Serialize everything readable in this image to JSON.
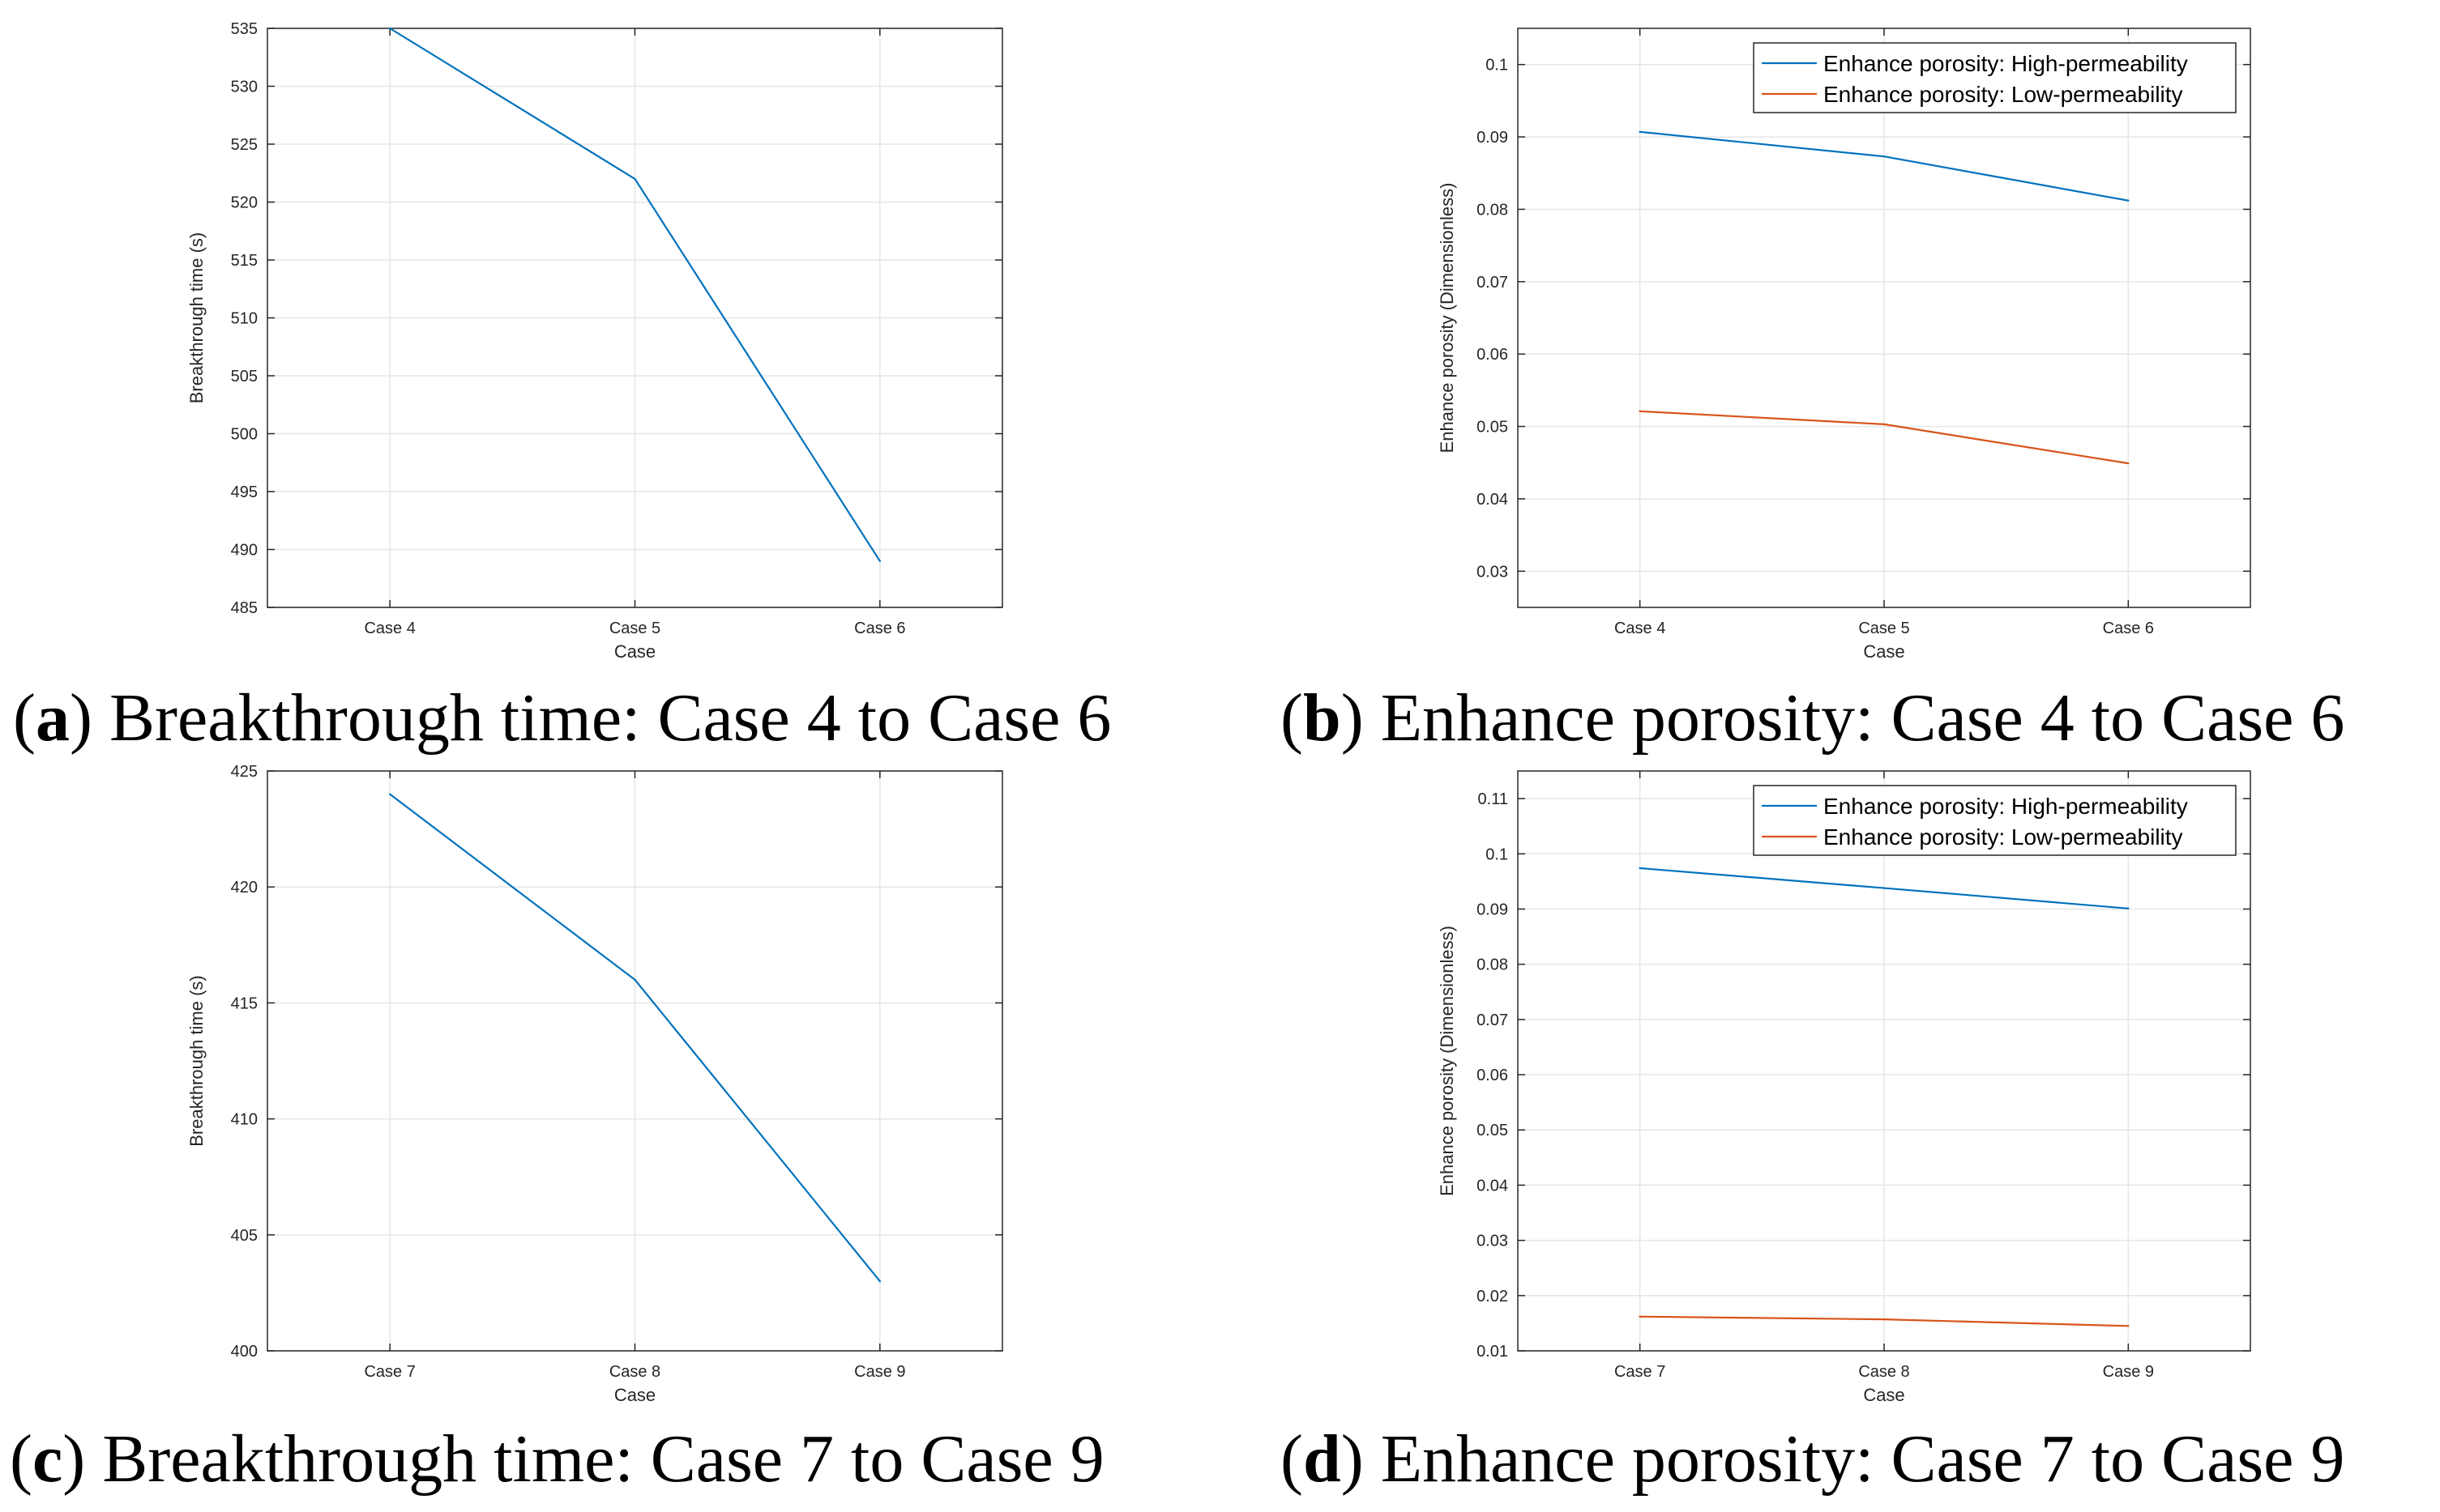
{
  "chart_data": [
    {
      "type": "line",
      "panel": "a",
      "caption_label": "a",
      "caption": "Breakthrough time: Case 4 to Case 6",
      "categories": [
        "Case 4",
        "Case 5",
        "Case 6"
      ],
      "xlabel": "Case",
      "ylabel": "Breakthrough time (s)",
      "ylim": [
        485,
        535
      ],
      "yticks": [
        "485",
        "490",
        "495",
        "500",
        "505",
        "510",
        "515",
        "520",
        "525",
        "530",
        "535"
      ],
      "grid": true,
      "legend": null,
      "series": [
        {
          "values": [
            535,
            522,
            489
          ],
          "color": "#0072BD"
        }
      ]
    },
    {
      "type": "line",
      "panel": "b",
      "caption_label": "b",
      "caption": "Enhance porosity: Case 4 to Case 6",
      "categories": [
        "Case 4",
        "Case 5",
        "Case 6"
      ],
      "xlabel": "Case",
      "ylabel": "Enhance porosity (Dimensionless)",
      "ylim": [
        0.025,
        0.105
      ],
      "yticks": [
        "0.03",
        "0.04",
        "0.05",
        "0.06",
        "0.07",
        "0.08",
        "0.09",
        "0.1"
      ],
      "grid": true,
      "legend": "top-right",
      "series": [
        {
          "name": "Enhance porosity: High-permeability",
          "values": [
            0.0907,
            0.0873,
            0.0812
          ],
          "color": "#0072BD"
        },
        {
          "name": "Enhance porosity: Low-permeability",
          "values": [
            0.0521,
            0.0503,
            0.0449
          ],
          "color": "#D95319"
        }
      ]
    },
    {
      "type": "line",
      "panel": "c",
      "caption_label": "c",
      "caption": "Breakthrough time: Case 7 to Case 9",
      "categories": [
        "Case 7",
        "Case 8",
        "Case 9"
      ],
      "xlabel": "Case",
      "ylabel": "Breakthrough time (s)",
      "ylim": [
        400,
        425
      ],
      "yticks": [
        "400",
        "405",
        "410",
        "415",
        "420",
        "425"
      ],
      "grid": true,
      "legend": null,
      "series": [
        {
          "values": [
            424,
            416,
            403
          ],
          "color": "#0072BD"
        }
      ]
    },
    {
      "type": "line",
      "panel": "d",
      "caption_label": "d",
      "caption": "Enhance porosity: Case 7 to Case 9",
      "categories": [
        "Case 7",
        "Case 8",
        "Case 9"
      ],
      "xlabel": "Case",
      "ylabel": "Enhance porosity (Dimensionless)",
      "ylim": [
        0.01,
        0.115
      ],
      "yticks": [
        "0.01",
        "0.02",
        "0.03",
        "0.04",
        "0.05",
        "0.06",
        "0.07",
        "0.08",
        "0.09",
        "0.1",
        "0.11"
      ],
      "grid": true,
      "legend": "top-right",
      "series": [
        {
          "name": "Enhance porosity: High-permeability",
          "values": [
            0.0974,
            0.0938,
            0.0901
          ],
          "color": "#0072BD"
        },
        {
          "name": "Enhance porosity: Low-permeability",
          "values": [
            0.0162,
            0.0157,
            0.0145
          ],
          "color": "#D95319"
        }
      ]
    }
  ]
}
